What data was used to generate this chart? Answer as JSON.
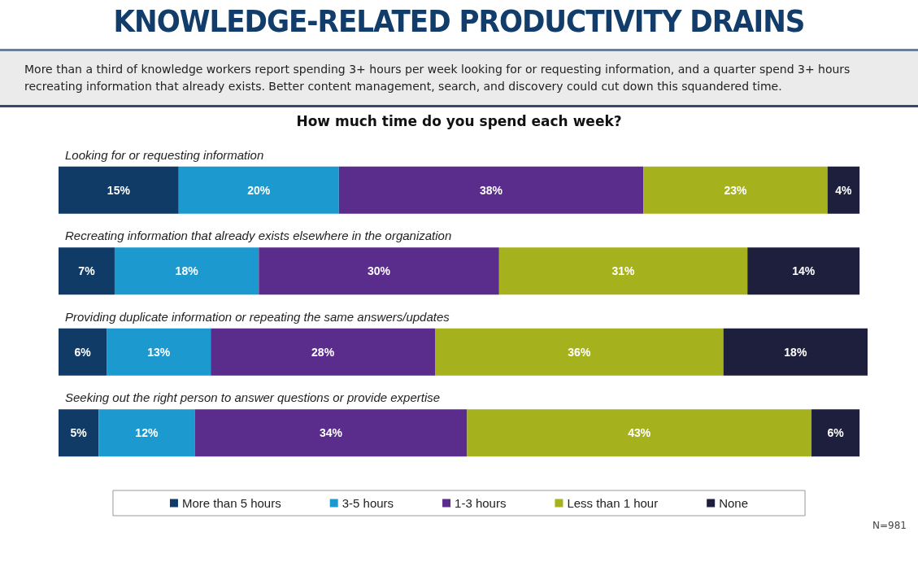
{
  "chart_data": {
    "type": "bar",
    "orientation": "horizontal",
    "stacked": true,
    "title": "KNOWLEDGE-RELATED PRODUCTIVITY DRAINS",
    "subtitle": "More than a third of knowledge workers report spending 3+ hours per week looking for or requesting information, and a quarter spend 3+ hours recreating information that already exists. Better content management, search, and discovery could cut down this squandered time.",
    "categories": [
      "Looking for or requesting information",
      "Recreating information that already exists elsewhere in the organization",
      "Providing duplicate information or repeating the same answers/updates",
      "Seeking out the right person to answer questions or provide expertise"
    ],
    "series": [
      {
        "name": "More than 5 hours",
        "color": "#0f3b66",
        "values": [
          15,
          7,
          6,
          5
        ],
        "value_labels": [
          "15%",
          "7%",
          "6%",
          "5%"
        ]
      },
      {
        "name": "3-5 hours",
        "color": "#1c9ad0",
        "values": [
          20,
          18,
          13,
          12
        ],
        "value_labels": [
          "20%",
          "18%",
          "13%",
          "12%"
        ]
      },
      {
        "name": "1-3 hours",
        "color": "#5a2d8c",
        "values": [
          38,
          30,
          28,
          34
        ],
        "value_labels": [
          "38%",
          "30%",
          "28%",
          "34%"
        ]
      },
      {
        "name": "Less than 1 hour",
        "color": "#a6b21d",
        "values": [
          23,
          31,
          36,
          43
        ],
        "value_labels": [
          "23%",
          "31%",
          "36%",
          "43%"
        ]
      },
      {
        "name": "None",
        "color": "#1e1f3c",
        "values": [
          4,
          14,
          18,
          6
        ],
        "value_labels": [
          "4%",
          "14%",
          "18%",
          "6%"
        ]
      }
    ],
    "legend": "bottom",
    "annotations": [
      "How much time do you spend each week?",
      "N=981"
    ]
  }
}
